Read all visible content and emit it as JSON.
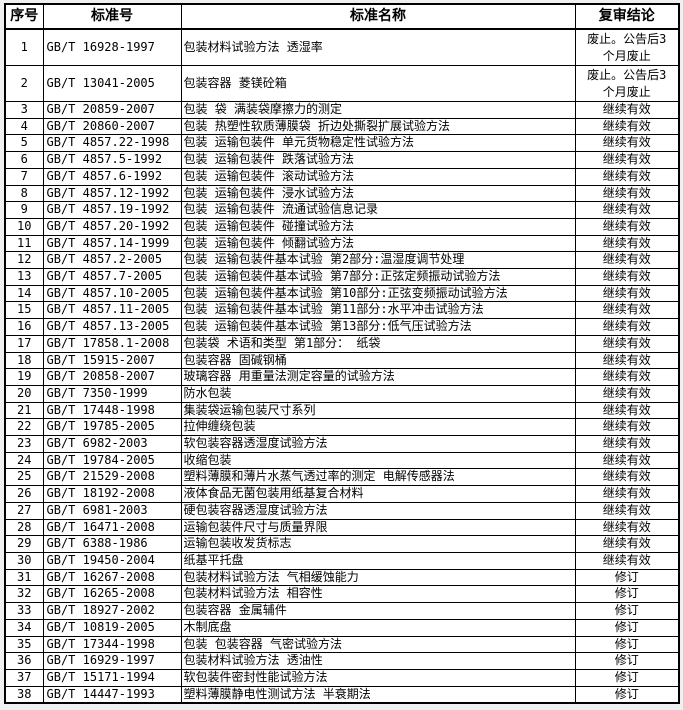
{
  "colors": {
    "text": "#000000",
    "border": "#000000",
    "cell_background": "#ffffff",
    "page_background": "#f0f0f0"
  },
  "table": {
    "columns": [
      {
        "key": "num",
        "label": "序号"
      },
      {
        "key": "code",
        "label": "标准号"
      },
      {
        "key": "name",
        "label": "标准名称"
      },
      {
        "key": "conclusion",
        "label": "复审结论"
      }
    ],
    "rows": [
      {
        "num": "1",
        "code": "GB/T 16928-1997",
        "name": "包装材料试验方法 透湿率",
        "conclusion": "废止。公告后3个月废止"
      },
      {
        "num": "2",
        "code": "GB/T 13041-2005",
        "name": "包装容器 菱镁砼箱",
        "conclusion": "废止。公告后3个月废止"
      },
      {
        "num": "3",
        "code": "GB/T 20859-2007",
        "name": "包装 袋 满装袋摩擦力的测定",
        "conclusion": "继续有效"
      },
      {
        "num": "4",
        "code": "GB/T 20860-2007",
        "name": "包装 热塑性软质薄膜袋 折边处撕裂扩展试验方法",
        "conclusion": "继续有效"
      },
      {
        "num": "5",
        "code": "GB/T 4857.22-1998",
        "name": "包装 运输包装件 单元货物稳定性试验方法",
        "conclusion": "继续有效"
      },
      {
        "num": "6",
        "code": "GB/T 4857.5-1992",
        "name": "包装 运输包装件 跌落试验方法",
        "conclusion": "继续有效"
      },
      {
        "num": "7",
        "code": "GB/T 4857.6-1992",
        "name": "包装 运输包装件 滚动试验方法",
        "conclusion": "继续有效"
      },
      {
        "num": "8",
        "code": "GB/T 4857.12-1992",
        "name": "包装 运输包装件 浸水试验方法",
        "conclusion": "继续有效"
      },
      {
        "num": "9",
        "code": "GB/T 4857.19-1992",
        "name": "包装 运输包装件 流通试验信息记录",
        "conclusion": "继续有效"
      },
      {
        "num": "10",
        "code": "GB/T 4857.20-1992",
        "name": "包装 运输包装件 碰撞试验方法",
        "conclusion": "继续有效"
      },
      {
        "num": "11",
        "code": "GB/T 4857.14-1999",
        "name": "包装 运输包装件 倾翻试验方法",
        "conclusion": "继续有效"
      },
      {
        "num": "12",
        "code": "GB/T 4857.2-2005",
        "name": "包装 运输包装件基本试验 第2部分:温湿度调节处理",
        "conclusion": "继续有效"
      },
      {
        "num": "13",
        "code": "GB/T 4857.7-2005",
        "name": "包装 运输包装件基本试验 第7部分:正弦定频振动试验方法",
        "conclusion": "继续有效"
      },
      {
        "num": "14",
        "code": "GB/T 4857.10-2005",
        "name": "包装 运输包装件基本试验 第10部分:正弦变频振动试验方法",
        "conclusion": "继续有效"
      },
      {
        "num": "15",
        "code": "GB/T 4857.11-2005",
        "name": "包装 运输包装件基本试验 第11部分:水平冲击试验方法",
        "conclusion": "继续有效"
      },
      {
        "num": "16",
        "code": "GB/T 4857.13-2005",
        "name": "包装 运输包装件基本试验 第13部分:低气压试验方法",
        "conclusion": "继续有效"
      },
      {
        "num": "17",
        "code": "GB/T 17858.1-2008",
        "name": "包装袋 术语和类型 第1部分： 纸袋",
        "conclusion": "继续有效"
      },
      {
        "num": "18",
        "code": "GB/T 15915-2007",
        "name": "包装容器 固碱钢桶",
        "conclusion": "继续有效"
      },
      {
        "num": "19",
        "code": "GB/T 20858-2007",
        "name": "玻璃容器 用重量法测定容量的试验方法",
        "conclusion": "继续有效"
      },
      {
        "num": "20",
        "code": "GB/T 7350-1999",
        "name": "防水包装",
        "conclusion": "继续有效"
      },
      {
        "num": "21",
        "code": "GB/T 17448-1998",
        "name": "集装袋运输包装尺寸系列",
        "conclusion": "继续有效"
      },
      {
        "num": "22",
        "code": "GB/T 19785-2005",
        "name": "拉伸缠绕包装",
        "conclusion": "继续有效"
      },
      {
        "num": "23",
        "code": "GB/T 6982-2003",
        "name": "软包装容器透湿度试验方法",
        "conclusion": "继续有效"
      },
      {
        "num": "24",
        "code": "GB/T 19784-2005",
        "name": "收缩包装",
        "conclusion": "继续有效"
      },
      {
        "num": "25",
        "code": "GB/T 21529-2008",
        "name": "塑料薄膜和薄片水蒸气透过率的测定 电解传感器法",
        "conclusion": "继续有效"
      },
      {
        "num": "26",
        "code": "GB/T 18192-2008",
        "name": "液体食品无菌包装用纸基复合材料",
        "conclusion": "继续有效"
      },
      {
        "num": "27",
        "code": "GB/T 6981-2003",
        "name": "硬包装容器透湿度试验方法",
        "conclusion": "继续有效"
      },
      {
        "num": "28",
        "code": "GB/T 16471-2008",
        "name": "运输包装件尺寸与质量界限",
        "conclusion": "继续有效"
      },
      {
        "num": "29",
        "code": "GB/T 6388-1986",
        "name": "运输包装收发货标志",
        "conclusion": "继续有效"
      },
      {
        "num": "30",
        "code": "GB/T 19450-2004",
        "name": "纸基平托盘",
        "conclusion": "继续有效"
      },
      {
        "num": "31",
        "code": "GB/T 16267-2008",
        "name": "包装材料试验方法 气相缓蚀能力",
        "conclusion": "修订"
      },
      {
        "num": "32",
        "code": "GB/T 16265-2008",
        "name": "包装材料试验方法 相容性",
        "conclusion": "修订"
      },
      {
        "num": "33",
        "code": "GB/T 18927-2002",
        "name": "包装容器 金属辅件",
        "conclusion": "修订"
      },
      {
        "num": "34",
        "code": "GB/T 10819-2005",
        "name": "木制底盘",
        "conclusion": "修订"
      },
      {
        "num": "35",
        "code": "GB/T 17344-1998",
        "name": "包装 包装容器 气密试验方法",
        "conclusion": "修订"
      },
      {
        "num": "36",
        "code": "GB/T 16929-1997",
        "name": "包装材料试验方法 透油性",
        "conclusion": "修订"
      },
      {
        "num": "37",
        "code": "GB/T 15171-1994",
        "name": "软包装件密封性能试验方法",
        "conclusion": "修订"
      },
      {
        "num": "38",
        "code": "GB/T 14447-1993",
        "name": "塑料薄膜静电性测试方法 半衰期法",
        "conclusion": "修订"
      }
    ]
  }
}
